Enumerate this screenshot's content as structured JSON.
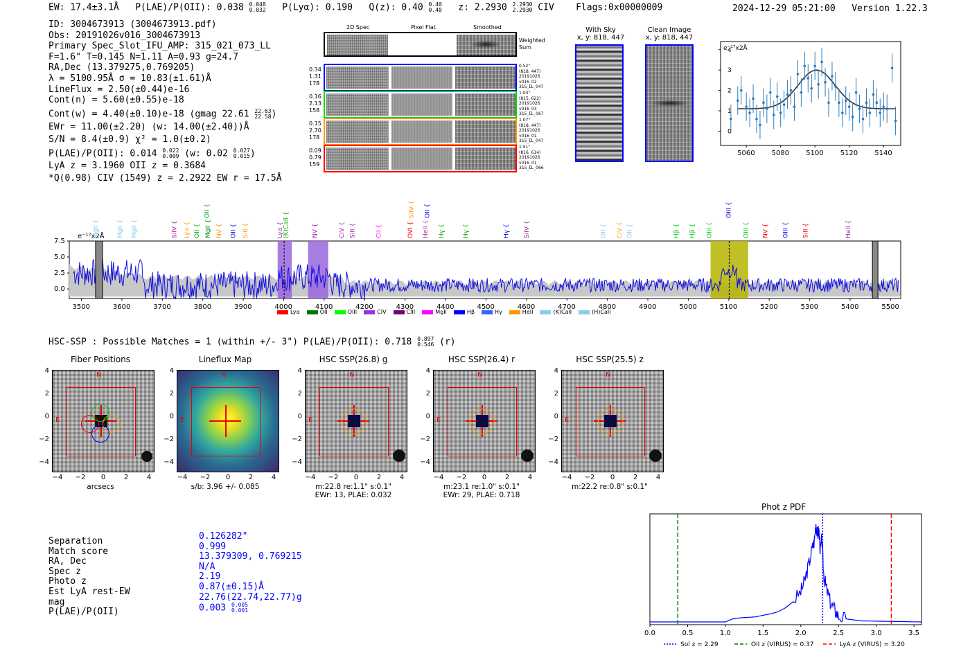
{
  "header": {
    "ew": "EW: 17.4±3.1Å",
    "plae": "P(LAE)/P(OII): 0.038",
    "plae_hi": "0.048",
    "plae_lo": "0.032",
    "plya": "P(Lyα): 0.190",
    "qz": "Q(z): 0.40",
    "qz_hi": "0.40",
    "qz_lo": "0.40",
    "z": "z: 2.2930",
    "z_hi": "2.2930",
    "z_lo": "2.2930",
    "line": "CIV",
    "flags": "Flags:0x00000009",
    "timestamp": "2024-12-29 05:21:00",
    "version": "Version 1.22.3"
  },
  "info": {
    "lines": [
      "ID: 3004673913 (3004673913.pdf)",
      "Obs: 20191026v016_3004673913",
      "Primary Spec_Slot_IFU_AMP: 315_021_073_LL",
      "F=1.6\"  T=0.145  N=1.11  A=0.93  g=24.7",
      "RA,Dec (13.379275,0.769205)",
      "λ = 5100.95Å  σ = 10.83(±1.61)Å",
      "LineFlux = 2.50(±0.44)e-16",
      "Cont(n) = 5.60(±0.55)e-18",
      "Cont(w) = 4.40(±0.10)e-18 (gmag 22.61",
      "EWr = 11.00(±2.20) (w: 14.00(±2.40))Å",
      "S/N = 8.4(±0.9)  χ² = 1.0(±0.2)",
      "P(LAE)/P(OII): 0.014",
      "LyA z = 3.1960  OII z = 0.3684",
      "*Q(0.98) CIV (1549) z = 2.2922  EW r = 17.5Å"
    ],
    "gmag_hi": "22.63",
    "gmag_lo": "22.58",
    "plae_line_hi": "0.022",
    "plae_line_lo": "0.009",
    "plae_w": "(w: 0.02",
    "plae_w_hi": "0.027",
    "plae_w_lo": "0.015",
    "plae_w_close": ")"
  },
  "fibers": {
    "col_titles": [
      "2D Spec",
      "Pixel Flat",
      "Smoothed"
    ],
    "weighted_sum_label": "Weighted\nSum",
    "rows": [
      {
        "vals": [
          "0.34",
          "1.31",
          "178"
        ],
        "color": "#0000ff",
        "meta": [
          "0.52\"",
          "(818, 447)",
          "20191026",
          "v016_02",
          "315_LL_047"
        ]
      },
      {
        "vals": [
          "0.16",
          "2.13",
          "158"
        ],
        "color": "#00dd00",
        "meta": [
          "1.03\"",
          "(815, 622)",
          "20191026",
          "v016_03",
          "315_LL_067"
        ]
      },
      {
        "vals": [
          "0.15",
          "2.70",
          "178"
        ],
        "color": "#ff9900",
        "meta": [
          "1.07\"",
          "(818, 447)",
          "20191026",
          "v016_01",
          "315_LL_047"
        ]
      },
      {
        "vals": [
          "0.09",
          "0.79",
          "159"
        ],
        "color": "#ff0000",
        "meta": [
          "1.51\"",
          "(816, 614)",
          "20191026",
          "v016_01",
          "315_LL_066"
        ]
      }
    ]
  },
  "cutouts": {
    "with_sky_title": "With Sky",
    "with_sky_xy": "x, y: 818, 447",
    "clean_title": "Clean Image",
    "clean_xy": "x, y: 818, 447"
  },
  "chart_data": [
    {
      "type": "scatter",
      "name": "line-fit",
      "ylabel": "e⁻¹⁷x2Å",
      "xlim": [
        5045,
        5150
      ],
      "ylim": [
        -0.7,
        4.4
      ],
      "xticks": [
        5060,
        5080,
        5100,
        5120,
        5140
      ],
      "yticks": [
        0,
        1,
        2,
        3,
        4
      ],
      "x": [
        5051,
        5055,
        5057,
        5060,
        5062,
        5064,
        5066,
        5068,
        5070,
        5072,
        5074,
        5076,
        5078,
        5080,
        5082,
        5084,
        5086,
        5088,
        5090,
        5092,
        5094,
        5096,
        5098,
        5100,
        5102,
        5104,
        5106,
        5108,
        5110,
        5112,
        5114,
        5116,
        5118,
        5120,
        5122,
        5124,
        5126,
        5128,
        5130,
        5132,
        5134,
        5136,
        5138,
        5140,
        5142,
        5145,
        5147
      ],
      "y": [
        0.6,
        1.5,
        2.0,
        1.2,
        0.9,
        1.6,
        0.6,
        0.3,
        1.4,
        1.1,
        1.9,
        0.8,
        1.7,
        0.9,
        1.3,
        1.8,
        2.0,
        1.2,
        2.8,
        1.9,
        3.2,
        2.6,
        2.1,
        3.2,
        2.3,
        3.4,
        2.4,
        1.4,
        2.7,
        2.2,
        1.4,
        0.9,
        1.5,
        1.2,
        0.7,
        1.9,
        1.1,
        0.6,
        1.4,
        0.9,
        1.8,
        1.4,
        0.9,
        1.2,
        1.1,
        3.1,
        0.5
      ],
      "fit": {
        "center": 5100.95,
        "sigma": 10.83,
        "amp": 1.9,
        "base": 1.1
      }
    },
    {
      "type": "line",
      "name": "full-spectrum",
      "ylabel": "e⁻¹⁷x2Å",
      "xlim": [
        3470,
        5525
      ],
      "ylim": [
        -1.5,
        7.5
      ],
      "xticks": [
        3500,
        3600,
        3700,
        3800,
        3900,
        4000,
        4100,
        4200,
        4300,
        4400,
        4500,
        4600,
        4700,
        4800,
        4900,
        5000,
        5100,
        5200,
        5300,
        5400,
        5500
      ],
      "yticks": [
        0.0,
        2.5,
        5.0,
        7.5
      ],
      "highlight_regions": [
        {
          "x0": 3985,
          "x1": 4020,
          "color": "#9966dd"
        },
        {
          "x0": 4060,
          "x1": 4110,
          "color": "#9966dd"
        },
        {
          "x0": 5055,
          "x1": 5148,
          "color": "#b5b500"
        }
      ],
      "dashed_lines": [
        4001,
        5101
      ],
      "line_labels": [
        {
          "x": 3540,
          "label": "MgII",
          "color": "#88ccee"
        },
        {
          "x": 3600,
          "label": "MgII",
          "color": "#88ccee"
        },
        {
          "x": 3635,
          "label": "MgII",
          "color": "#88ccee"
        },
        {
          "x": 3735,
          "label": "SiIV",
          "color": "#aa22aa"
        },
        {
          "x": 3765,
          "label": "Lyα",
          "color": "#ff9900"
        },
        {
          "x": 3790,
          "label": "OII",
          "color": "#00aa00"
        },
        {
          "x": 3818,
          "label": "MgII",
          "color": "#008800"
        },
        {
          "x": 3845,
          "label": "NV",
          "color": "#ff9900"
        },
        {
          "x": 3880,
          "label": "OII",
          "color": "#0000cc"
        },
        {
          "x": 3910,
          "label": "SiII",
          "color": "#ff9900"
        },
        {
          "x": 3996,
          "label": "Lyα",
          "color": "#aa22aa"
        },
        {
          "x": 4010,
          "label": "(K)CaII",
          "color": "#00aa00"
        },
        {
          "x": 4082,
          "label": "NV",
          "color": "#aa22aa"
        },
        {
          "x": 4148,
          "label": "CIV",
          "color": "#aa22aa"
        },
        {
          "x": 4175,
          "label": "SiII",
          "color": "#aa22aa"
        },
        {
          "x": 4240,
          "label": "CII",
          "color": "#ff00ff"
        },
        {
          "x": 4318,
          "label": "OVI",
          "color": "#ff0000"
        },
        {
          "x": 4355,
          "label": "HeII",
          "color": "#aa22aa"
        },
        {
          "x": 4395,
          "label": "Hγ",
          "color": "#00aa00"
        },
        {
          "x": 4455,
          "label": "Hγ",
          "color": "#00aa00"
        },
        {
          "x": 4555,
          "label": "Hγ",
          "color": "#0000cc"
        },
        {
          "x": 4605,
          "label": "SiIV",
          "color": "#aa22aa"
        },
        {
          "x": 4795,
          "label": "OII",
          "color": "#88ccee"
        },
        {
          "x": 4835,
          "label": "CIV",
          "color": "#ff9900"
        },
        {
          "x": 4860,
          "label": "OII",
          "color": "#88ccee"
        },
        {
          "x": 4975,
          "label": "Hβ",
          "color": "#00cc00"
        },
        {
          "x": 5015,
          "label": "Hβ",
          "color": "#00cc00"
        },
        {
          "x": 5057,
          "label": "OIII",
          "color": "#00cc00"
        },
        {
          "x": 5147,
          "label": "OIII",
          "color": "#00cc00"
        },
        {
          "x": 5195,
          "label": "NV",
          "color": "#ff0000"
        },
        {
          "x": 5245,
          "label": "OIII",
          "color": "#0000ff"
        },
        {
          "x": 5295,
          "label": "SiII",
          "color": "#ff0000"
        },
        {
          "x": 5400,
          "label": "HeII",
          "color": "#aa22aa"
        }
      ],
      "top_labels": [
        {
          "x": 4320,
          "label": "SiIV",
          "color": "#ff9900"
        },
        {
          "x": 4360,
          "label": "OII",
          "color": "#0000cc"
        },
        {
          "x": 3815,
          "label": "OII",
          "color": "#00aa00"
        },
        {
          "x": 5105,
          "label": "OIII",
          "color": "#0000cc"
        }
      ],
      "legend": [
        {
          "label": "Lyα",
          "color": "#ff0000"
        },
        {
          "label": "OII",
          "color": "#007700"
        },
        {
          "label": "OIII",
          "color": "#00ff00"
        },
        {
          "label": "CIV",
          "color": "#9933dd"
        },
        {
          "label": "CIII",
          "color": "#770077"
        },
        {
          "label": "MgII",
          "color": "#ff00ff"
        },
        {
          "label": "Hβ",
          "color": "#0000ff"
        },
        {
          "label": "Hγ",
          "color": "#3366ff"
        },
        {
          "label": "HeII",
          "color": "#ff9900"
        },
        {
          "label": "(K)CaII",
          "color": "#88ccee"
        },
        {
          "label": "(H)CaII",
          "color": "#88ccee"
        }
      ]
    },
    {
      "type": "line",
      "name": "phot-z-pdf",
      "title": "Phot z PDF",
      "xlim": [
        0.0,
        3.6
      ],
      "ylim": [
        0,
        1.05
      ],
      "xticks": [
        0.0,
        0.5,
        1.0,
        1.5,
        2.0,
        2.5,
        3.0,
        3.5
      ],
      "vlines": [
        {
          "x": 2.29,
          "style": "dotted",
          "color": "#0000ff",
          "label": "Sol z = 2.29"
        },
        {
          "x": 0.37,
          "style": "dashed",
          "color": "#007700",
          "label": "OII z (VIRUS) = 0.37"
        },
        {
          "x": 3.2,
          "style": "dashed",
          "color": "#ff0000",
          "label": "LyA z (VIRUS) = 3.20"
        }
      ],
      "x": [
        0.0,
        1.0,
        1.1,
        1.2,
        1.4,
        1.6,
        1.7,
        1.8,
        1.9,
        2.0,
        2.05,
        2.1,
        2.15,
        2.18,
        2.2,
        2.22,
        2.24,
        2.26,
        2.28,
        2.3,
        2.32,
        2.35,
        2.4,
        2.45,
        2.5,
        2.6,
        2.8,
        3.6
      ],
      "y": [
        0.0,
        0.0,
        0.03,
        0.04,
        0.05,
        0.08,
        0.1,
        0.14,
        0.2,
        0.3,
        0.4,
        0.55,
        0.72,
        0.8,
        0.98,
        0.85,
        0.9,
        0.7,
        0.82,
        0.5,
        0.4,
        0.3,
        0.18,
        0.12,
        0.06,
        0.03,
        0.01,
        0.0
      ]
    }
  ],
  "hsc": {
    "summary": "HSC-SSP : Possible Matches = 1 (within +/- 3\")  P(LAE)/P(OII): 0.718",
    "summary_hi": "0.897",
    "summary_lo": "0.546",
    "summary_tail": "(r)",
    "panels": [
      {
        "title": "Fiber Positions",
        "caption": "arcsecs",
        "caption2": ""
      },
      {
        "title": "Lineflux Map",
        "caption": "s/b: 3.96 +/- 0.085",
        "caption2": ""
      },
      {
        "title": "HSC SSP(26.8) g",
        "caption": "m:22.8  re:1.1\"  s:0.1\"",
        "caption2": "EWr: 13, PLAE: 0.032"
      },
      {
        "title": "HSC SSP(26.4) r",
        "caption": "m:23.1  re:1.0\"  s:0.1\"",
        "caption2": "EWr: 29, PLAE: 0.718"
      },
      {
        "title": "HSC SSP(25.5) z",
        "caption": "m:22.2  re:0.8\"  s:0.1\"",
        "caption2": ""
      }
    ],
    "axis_ticks_y": [
      "4",
      "2",
      "0",
      "−2",
      "−4"
    ],
    "axis_ticks_x": [
      "−4",
      "−2",
      "0",
      "2",
      "4"
    ],
    "north": "N",
    "east": "E"
  },
  "match": {
    "labels": [
      "Separation",
      "Match score",
      "RA, Dec",
      "Spec z",
      "Photo z",
      "Est LyA rest-EW",
      "mag",
      "P(LAE)/P(OII)"
    ],
    "values": [
      "0.126282\"",
      "0.999",
      "13.379309, 0.769215",
      "N/A",
      "2.19",
      "0.87(±0.15)Å",
      "22.76(22.74,22.77)g",
      "0.003"
    ],
    "plae_hi": "0.005",
    "plae_lo": "0.001"
  }
}
